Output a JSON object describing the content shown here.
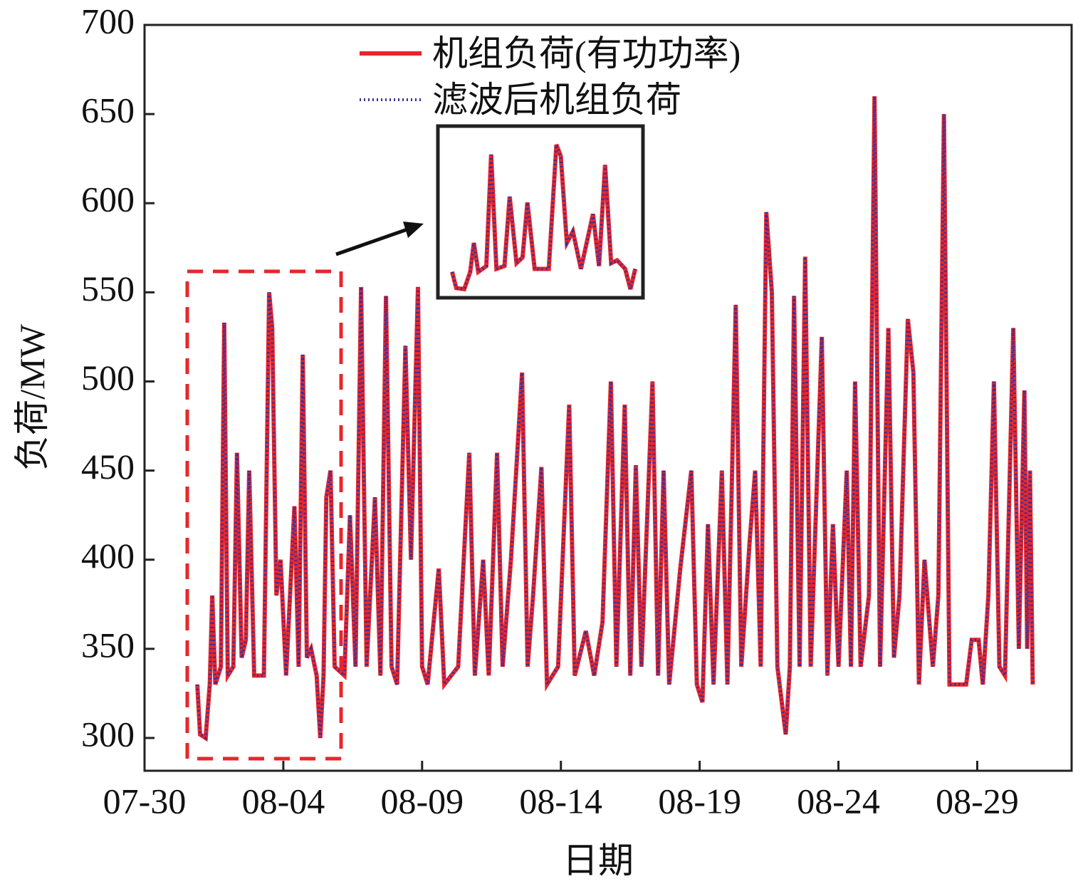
{
  "chart_data": {
    "type": "line",
    "xlabel": "日期",
    "ylabel": "负荷/MW",
    "xlim": [
      0,
      33.4
    ],
    "ylim": [
      281.6,
      700
    ],
    "xticks": [
      {
        "value": 0,
        "label": "07-30"
      },
      {
        "value": 5,
        "label": "08-04"
      },
      {
        "value": 10,
        "label": "08-09"
      },
      {
        "value": 15,
        "label": "08-14"
      },
      {
        "value": 20,
        "label": "08-19"
      },
      {
        "value": 25,
        "label": "08-24"
      },
      {
        "value": 30,
        "label": "08-29"
      }
    ],
    "yticks": [
      300,
      350,
      400,
      450,
      500,
      550,
      600,
      650,
      700
    ],
    "legend": "upper center",
    "x": [
      1.9,
      2.0,
      2.2,
      2.35,
      2.44,
      2.55,
      2.75,
      2.87,
      3.0,
      3.2,
      3.33,
      3.5,
      3.65,
      3.77,
      3.95,
      4.3,
      4.49,
      4.6,
      4.75,
      4.9,
      5.1,
      5.4,
      5.55,
      5.7,
      5.85,
      6.0,
      6.2,
      6.33,
      6.45,
      6.55,
      6.7,
      6.85,
      7.2,
      7.4,
      7.6,
      7.8,
      8.0,
      8.3,
      8.5,
      8.7,
      8.9,
      9.1,
      9.4,
      9.6,
      9.85,
      10.0,
      10.2,
      10.6,
      10.8,
      11.3,
      11.7,
      11.9,
      12.2,
      12.4,
      12.7,
      12.9,
      13.2,
      13.6,
      13.8,
      14.0,
      14.3,
      14.5,
      14.9,
      15.3,
      15.5,
      15.9,
      16.2,
      16.5,
      16.8,
      17.0,
      17.3,
      17.5,
      17.7,
      17.9,
      18.3,
      18.5,
      18.7,
      18.9,
      19.3,
      19.7,
      19.9,
      20.1,
      20.3,
      20.5,
      20.8,
      21.0,
      21.3,
      21.5,
      21.8,
      22.0,
      22.2,
      22.4,
      22.6,
      22.8,
      23.1,
      23.25,
      23.4,
      23.6,
      23.8,
      24.0,
      24.4,
      24.6,
      24.8,
      25.0,
      25.3,
      25.45,
      25.6,
      25.8,
      26.1,
      26.3,
      26.5,
      26.8,
      27.0,
      27.2,
      27.5,
      27.7,
      27.9,
      28.1,
      28.4,
      28.6,
      28.8,
      29.0,
      29.6,
      29.8,
      30.05,
      30.2,
      30.4,
      30.6,
      30.8,
      31.0,
      31.3,
      31.5,
      31.7,
      31.8,
      31.9,
      32.0
    ],
    "series": [
      {
        "name": "机组负荷(有功功率)",
        "color": "#e8262a",
        "style": "solid",
        "values": [
          330,
          302,
          300,
          330,
          380,
          330,
          340,
          533,
          335,
          340,
          460,
          345,
          355,
          450,
          335,
          335,
          550,
          530,
          380,
          400,
          335,
          430,
          340,
          515,
          345,
          350,
          335,
          300,
          335,
          435,
          450,
          340,
          335,
          425,
          340,
          553,
          340,
          435,
          335,
          548,
          340,
          330,
          520,
          400,
          553,
          340,
          330,
          395,
          330,
          340,
          460,
          335,
          400,
          335,
          460,
          340,
          400,
          505,
          340,
          380,
          452,
          330,
          340,
          487,
          335,
          360,
          335,
          365,
          500,
          340,
          487,
          335,
          453,
          340,
          500,
          335,
          450,
          330,
          395,
          450,
          330,
          320,
          420,
          330,
          450,
          330,
          543,
          340,
          410,
          450,
          340,
          595,
          550,
          340,
          302,
          340,
          548,
          340,
          570,
          340,
          525,
          335,
          420,
          340,
          450,
          340,
          500,
          340,
          380,
          660,
          340,
          530,
          345,
          380,
          535,
          505,
          330,
          400,
          340,
          380,
          650,
          330,
          330,
          355,
          355,
          330,
          380,
          500,
          340,
          335,
          530,
          350,
          495,
          350,
          450,
          330
        ]
      },
      {
        "name": "滤波后机组负荷",
        "color": "#3a2f9a",
        "style": "dotted",
        "values": [
          330,
          302,
          300,
          330,
          380,
          330,
          340,
          533,
          335,
          340,
          460,
          345,
          355,
          450,
          335,
          335,
          550,
          530,
          380,
          400,
          335,
          430,
          340,
          515,
          345,
          350,
          335,
          300,
          335,
          435,
          450,
          340,
          335,
          425,
          340,
          553,
          340,
          435,
          335,
          548,
          340,
          330,
          520,
          400,
          553,
          340,
          330,
          395,
          330,
          340,
          460,
          335,
          400,
          335,
          460,
          340,
          400,
          505,
          340,
          380,
          452,
          330,
          340,
          487,
          335,
          360,
          335,
          365,
          500,
          340,
          487,
          335,
          453,
          340,
          500,
          335,
          450,
          330,
          395,
          450,
          330,
          320,
          420,
          330,
          450,
          330,
          543,
          340,
          410,
          450,
          340,
          595,
          550,
          340,
          302,
          340,
          548,
          340,
          570,
          340,
          525,
          335,
          420,
          340,
          450,
          340,
          500,
          340,
          380,
          660,
          340,
          530,
          345,
          380,
          535,
          505,
          330,
          400,
          340,
          380,
          650,
          330,
          330,
          355,
          355,
          330,
          380,
          500,
          340,
          335,
          530,
          350,
          495,
          350,
          450,
          330
        ]
      }
    ]
  }
}
